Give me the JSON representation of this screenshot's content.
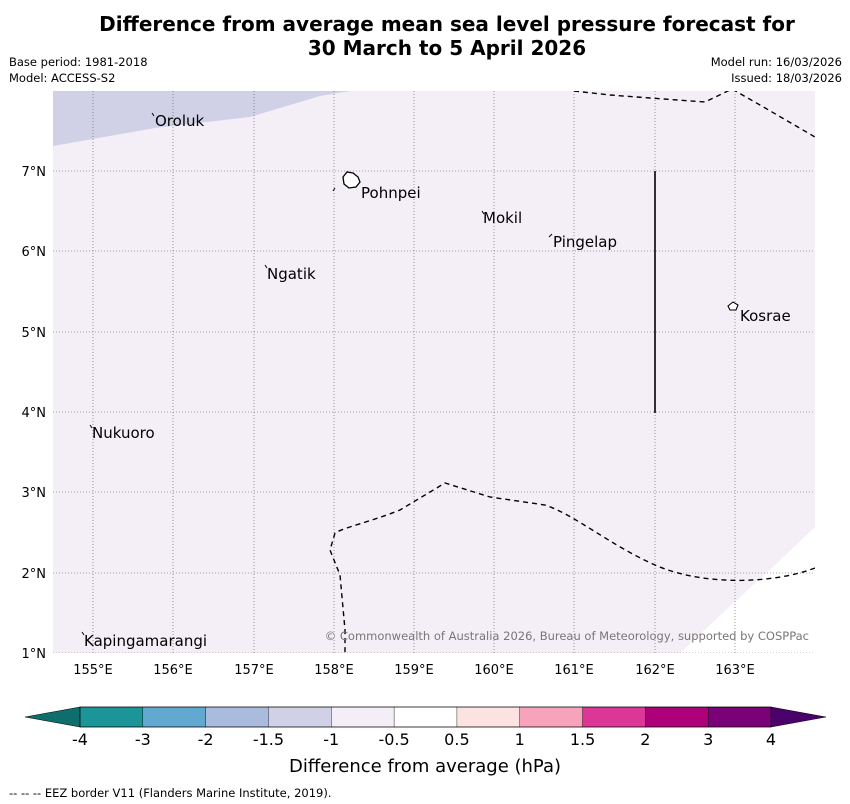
{
  "title_line1": "Difference from average mean sea level pressure forecast for",
  "title_line2": "30 March to 5 April 2026",
  "base_period": "Base period: 1981-2018",
  "model": "Model: ACCESS-S2",
  "model_run": "Model run: 16/03/2026",
  "issued": "Issued: 18/03/2026",
  "copyright": "© Commonwealth of Australia 2026, Bureau of Meteorology, supported by COSPPac",
  "lon_labels": [
    "155°E",
    "156°E",
    "157°E",
    "158°E",
    "159°E",
    "160°E",
    "161°E",
    "162°E",
    "163°E"
  ],
  "lat_labels": [
    "7°N",
    "6°N",
    "5°N",
    "4°N",
    "3°N",
    "2°N",
    "1°N"
  ],
  "places": [
    "Oroluk",
    "Pohnpei",
    "Mokil",
    "Pingelap",
    "Ngatik",
    "Kosrae",
    "Nukuoro",
    "Kapingamarangi"
  ],
  "colorbar": {
    "labels": [
      "-4",
      "-3",
      "-2",
      "-1.5",
      "-1",
      "-0.5",
      "0.5",
      "1",
      "1.5",
      "2",
      "3",
      "4"
    ],
    "colors": [
      "#1b9598",
      "#62a9d1",
      "#a9bcdd",
      "#d0d1e6",
      "#f4eef7",
      "#ffffff",
      "#fde2e2",
      "#f8a3bc",
      "#dc3797",
      "#ae0179",
      "#7a0177"
    ],
    "low_extend_color": "#0e6e6b",
    "high_extend_color": "#4a016c",
    "title": "Difference from average (hPa)"
  },
  "footnote": "--  --  -- EEZ border V11 (Flanders Marine Institute, 2019).",
  "colors": {
    "background_field": "#f4eef7",
    "low_field": "#d0d1e6",
    "no_anomaly": "#ffffff"
  }
}
